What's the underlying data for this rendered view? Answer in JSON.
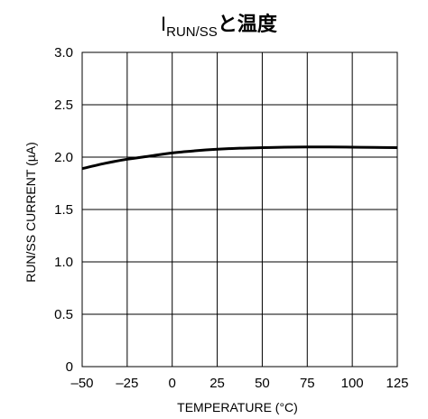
{
  "chart_data": {
    "type": "line",
    "title": {
      "main": "I",
      "subscript": "RUN/SS",
      "suffix": "と温度"
    },
    "xlabel": "TEMPERATURE (°C)",
    "ylabel": "RUN/SS CURRENT (µA)",
    "xlim": [
      -50,
      125
    ],
    "ylim": [
      0,
      3.0
    ],
    "xticks": [
      -50,
      -25,
      0,
      25,
      50,
      75,
      100,
      125
    ],
    "xtick_labels": [
      "–50",
      "–25",
      "0",
      "25",
      "50",
      "75",
      "100",
      "125"
    ],
    "yticks": [
      0,
      0.5,
      1.0,
      1.5,
      2.0,
      2.5,
      3.0
    ],
    "ytick_labels": [
      "0",
      "0.5",
      "1.0",
      "1.5",
      "2.0",
      "2.5",
      "3.0"
    ],
    "grid": true,
    "series": [
      {
        "x": [
          -50,
          -37.5,
          -25,
          -12.5,
          0,
          12.5,
          25,
          37.5,
          50,
          62.5,
          75,
          87.5,
          100,
          112.5,
          125
        ],
        "y": [
          1.89,
          1.94,
          1.98,
          2.01,
          2.04,
          2.06,
          2.075,
          2.085,
          2.09,
          2.095,
          2.097,
          2.097,
          2.095,
          2.093,
          2.09
        ]
      }
    ]
  }
}
